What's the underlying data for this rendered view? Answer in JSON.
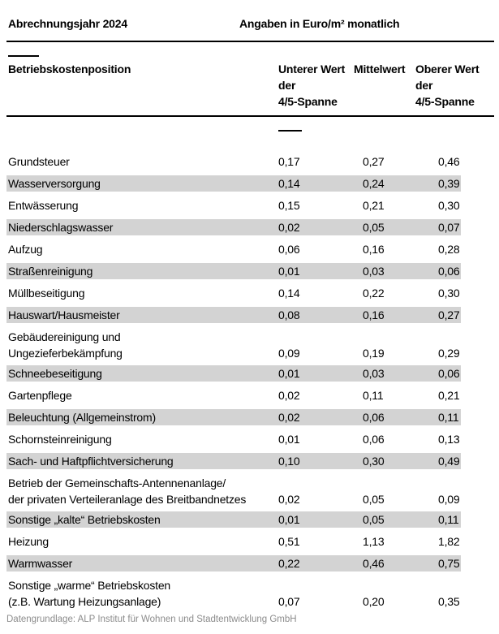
{
  "header": {
    "year_label": "Abrechnungsjahr 2024",
    "unit_label": "Angaben in Euro/m² monatlich"
  },
  "table": {
    "columns": {
      "position": "Betriebskostenposition",
      "lower": "Unterer Wert\nder\n4/5-Spanne",
      "mean": "Mittelwert",
      "upper": "Oberer Wert\nder\n4/5-Spanne"
    },
    "rows": [
      {
        "label": "Grundsteuer",
        "lower": "0,17",
        "mean": "0,27",
        "upper": "0,46",
        "shaded": false
      },
      {
        "label": "Wasserversorgung",
        "lower": "0,14",
        "mean": "0,24",
        "upper": "0,39",
        "shaded": true
      },
      {
        "label": "Entwässerung",
        "lower": "0,15",
        "mean": "0,21",
        "upper": "0,30",
        "shaded": false
      },
      {
        "label": "Niederschlagswasser",
        "lower": "0,02",
        "mean": "0,05",
        "upper": "0,07",
        "shaded": true
      },
      {
        "label": "Aufzug",
        "lower": "0,06",
        "mean": "0,16",
        "upper": "0,28",
        "shaded": false
      },
      {
        "label": "Straßenreinigung",
        "lower": "0,01",
        "mean": "0,03",
        "upper": "0,06",
        "shaded": true
      },
      {
        "label": "Müllbeseitigung",
        "lower": "0,14",
        "mean": "0,22",
        "upper": "0,30",
        "shaded": false
      },
      {
        "label": "Hauswart/Hausmeister",
        "lower": "0,08",
        "mean": "0,16",
        "upper": "0,27",
        "shaded": true
      },
      {
        "label": "Gebäudereinigung und\nUngezieferbekämpfung",
        "lower": "0,09",
        "mean": "0,19",
        "upper": "0,29",
        "shaded": false
      },
      {
        "label": "Schneebeseitigung",
        "lower": "0,01",
        "mean": "0,03",
        "upper": "0,06",
        "shaded": true
      },
      {
        "label": "Gartenpflege",
        "lower": "0,02",
        "mean": "0,11",
        "upper": "0,21",
        "shaded": false
      },
      {
        "label": "Beleuchtung (Allgemeinstrom)",
        "lower": "0,02",
        "mean": "0,06",
        "upper": "0,11",
        "shaded": true
      },
      {
        "label": "Schornsteinreinigung",
        "lower": "0,01",
        "mean": "0,06",
        "upper": "0,13",
        "shaded": false
      },
      {
        "label": "Sach- und Haftpflichtversicherung",
        "lower": "0,10",
        "mean": "0,30",
        "upper": "0,49",
        "shaded": true
      },
      {
        "label": "Betrieb der Gemeinschafts-Antennenanlage/\nder privaten Verteileranlage des Breitbandnetzes",
        "lower": "0,02",
        "mean": "0,05",
        "upper": "0,09",
        "shaded": false
      },
      {
        "label": "Sonstige „kalte“ Betriebskosten",
        "lower": "0,01",
        "mean": "0,05",
        "upper": "0,11",
        "shaded": true
      },
      {
        "label": "Heizung",
        "lower": "0,51",
        "mean": "1,13",
        "upper": "1,82",
        "shaded": false
      },
      {
        "label": "Warmwasser",
        "lower": "0,22",
        "mean": "0,46",
        "upper": "0,75",
        "shaded": true
      },
      {
        "label": "Sonstige „warme“ Betriebskosten\n(z.B. Wartung Heizungsanlage)",
        "lower": "0,07",
        "mean": "0,20",
        "upper": "0,35",
        "shaded": false
      }
    ]
  },
  "footer": {
    "source": "Datengrundlage: ALP Institut für Wohnen und Stadtentwicklung GmbH"
  },
  "colors": {
    "stripe": "#d3d3d3",
    "rule": "#000000",
    "muted_text": "#8c8c8c"
  }
}
